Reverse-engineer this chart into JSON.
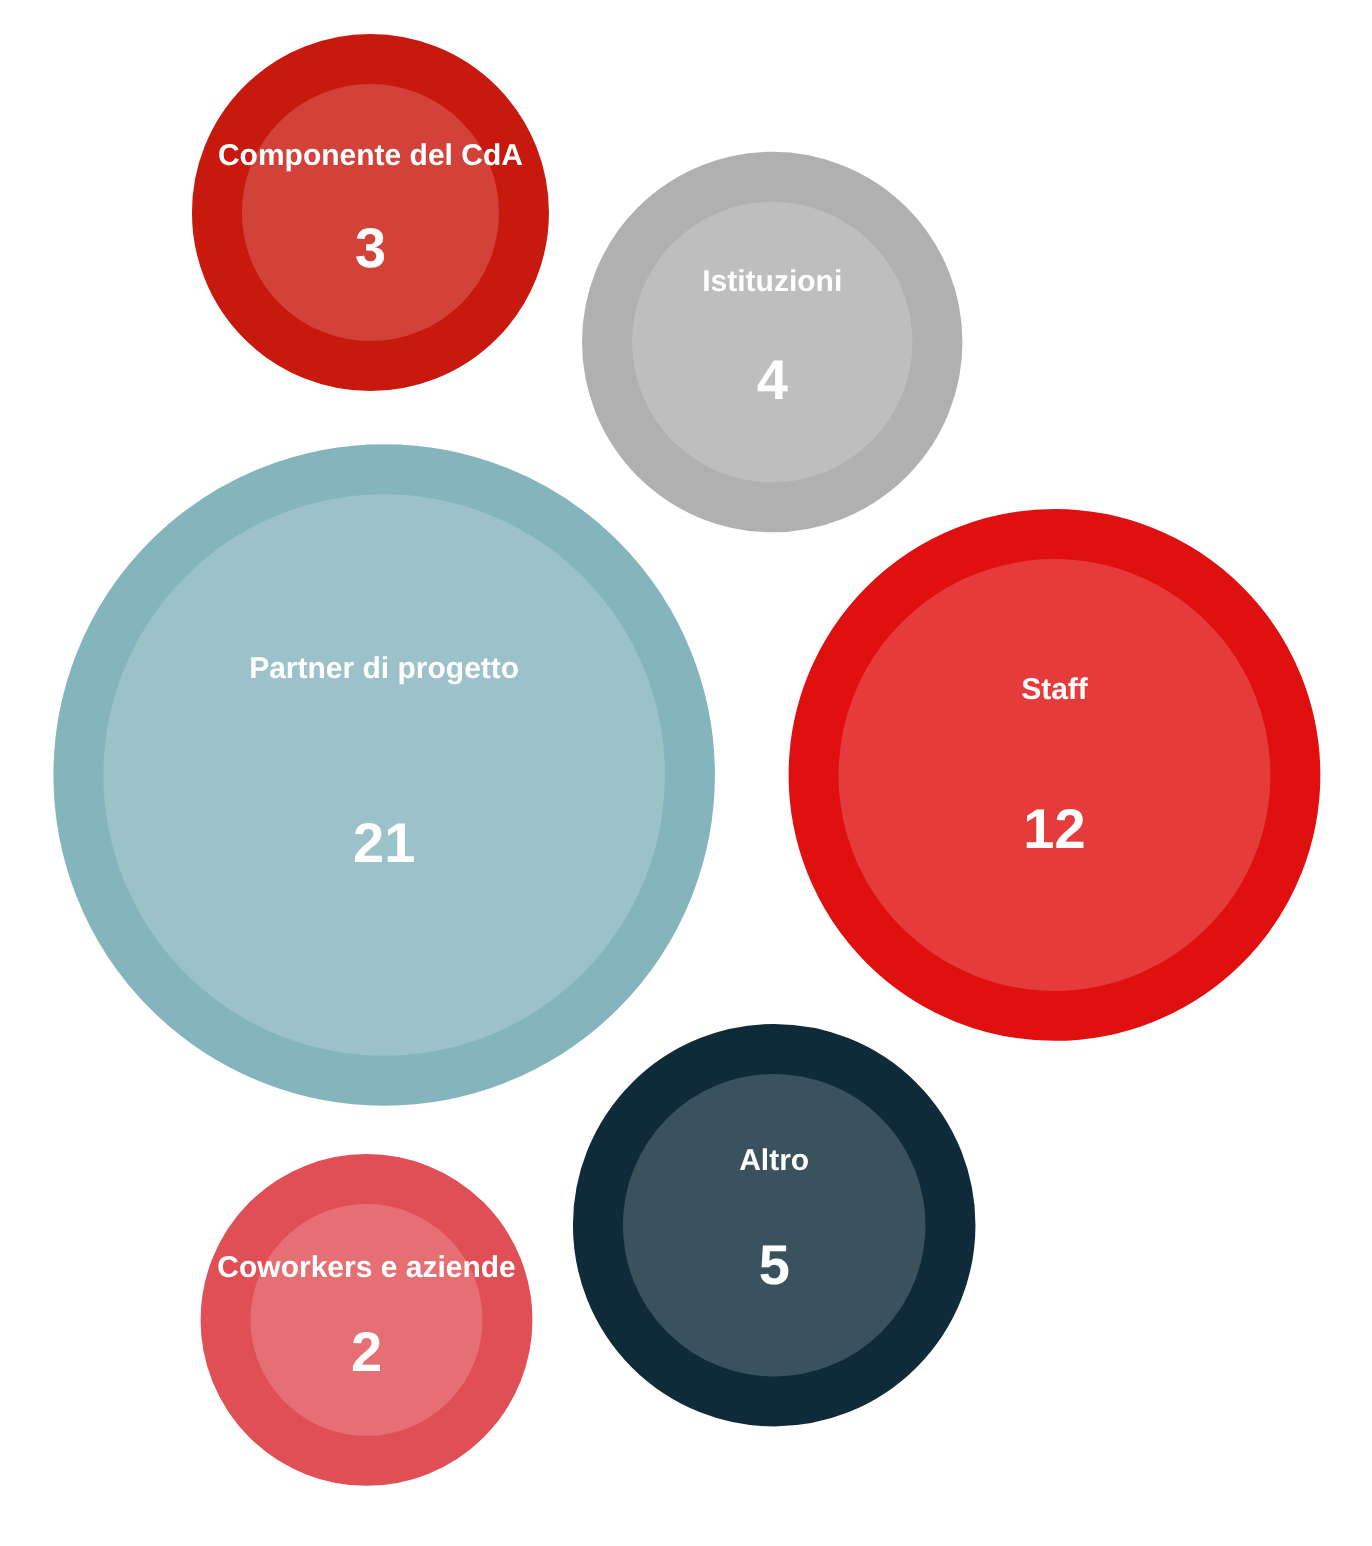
{
  "chart_data": {
    "type": "other",
    "categories": [
      "Componente del CdA",
      "Istituzioni",
      "Partner di progetto",
      "Staff",
      "Altro",
      "Coworkers e aziende"
    ],
    "values": [
      3,
      4,
      21,
      12,
      5,
      2
    ],
    "colors": [
      "#c8190e",
      "#b0b0b0",
      "#84b5bc",
      "#e01010",
      "#0f2b3a",
      "#e04f55"
    ],
    "data_labels": true
  }
}
